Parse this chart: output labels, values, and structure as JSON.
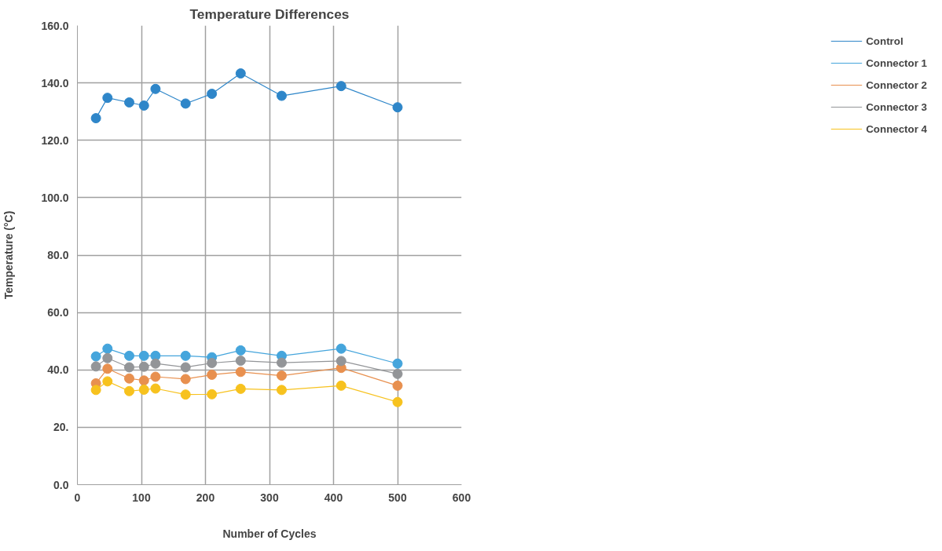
{
  "chart_data": {
    "type": "line",
    "title": "Temperature Differences",
    "xlabel": "Number of Cycles",
    "ylabel": "Temperature (°C)",
    "x": [
      29,
      47,
      81,
      104,
      122,
      169,
      210,
      255,
      319,
      412,
      500
    ],
    "series": [
      {
        "name": "Control",
        "color": "#2e86c9",
        "values": [
          127.7,
          134.8,
          133.2,
          132.1,
          137.9,
          132.8,
          136.2,
          143.3,
          135.5,
          138.9,
          131.5
        ]
      },
      {
        "name": "Connector 1",
        "color": "#45a5dc",
        "values": [
          44.7,
          47.4,
          44.9,
          44.9,
          44.9,
          44.9,
          44.4,
          46.8,
          44.9,
          47.4,
          42.2
        ]
      },
      {
        "name": "Connector 2",
        "color": "#e8904f",
        "values": [
          35.3,
          40.4,
          37.0,
          36.3,
          37.6,
          36.8,
          38.3,
          39.3,
          38.0,
          40.7,
          34.5
        ]
      },
      {
        "name": "Connector 3",
        "color": "#939598",
        "values": [
          41.2,
          44.1,
          40.9,
          41.1,
          42.2,
          40.9,
          42.4,
          43.2,
          42.5,
          43.1,
          38.6
        ]
      },
      {
        "name": "Connector 4",
        "color": "#f7c21e",
        "values": [
          33.0,
          36.0,
          32.6,
          33.1,
          33.5,
          31.4,
          31.5,
          33.4,
          33.0,
          34.5,
          28.8
        ]
      }
    ],
    "xlim": [
      0,
      600
    ],
    "xticks": [
      0,
      100,
      200,
      300,
      400,
      500,
      600
    ],
    "ylim": [
      0,
      160
    ],
    "yticks": [
      {
        "value": 0,
        "label": "0.0"
      },
      {
        "value": 20,
        "label": "20."
      },
      {
        "value": 40,
        "label": "40.0"
      },
      {
        "value": 60,
        "label": "60.0"
      },
      {
        "value": 80,
        "label": "80.0"
      },
      {
        "value": 100,
        "label": "100.0"
      },
      {
        "value": 120,
        "label": "120.0"
      },
      {
        "value": 140,
        "label": "140.0"
      },
      {
        "value": 160,
        "label": "160.0"
      }
    ],
    "grid": true,
    "legend": "right",
    "marker": "circle",
    "line_style": "solid"
  }
}
